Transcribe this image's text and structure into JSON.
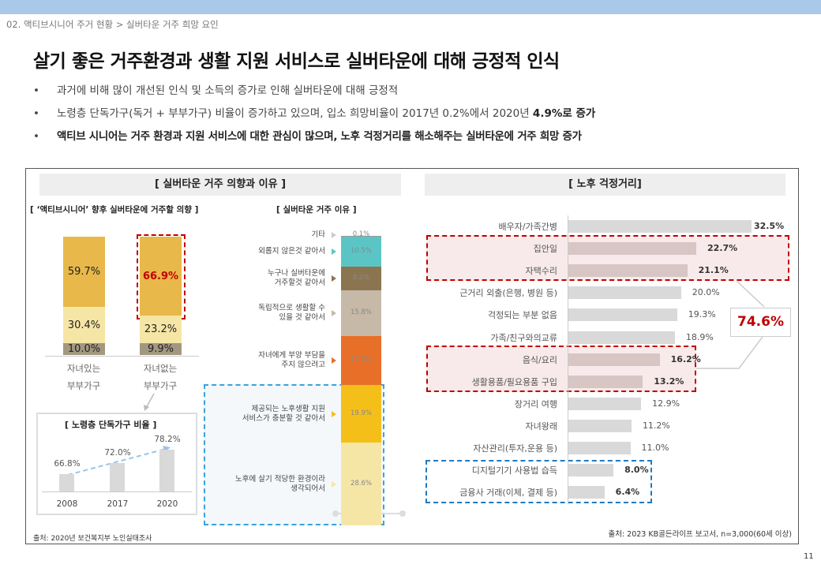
{
  "breadcrumb": "02. 액티브시니어 주거 현황 > 실버타운 거주 희망 요인",
  "title": "살기 좋은 거주환경과 생활 지원 서비스로 실버타운에 대해 긍정적 인식",
  "bullets": [
    {
      "text": "과거에 비해 많이 개선된 인식 및 소득의 증가로 인해 실버타운에 대해 긍정적"
    },
    {
      "text": "노령층 단독가구(독거 + 부부가구) 비율이 증가하고 있으며, 입소 희망비율이 2017년 0.2%에서 2020년 ",
      "bold": "4.9%로 증가"
    },
    {
      "text": "액티브 시니어는 거주 환경과 지원 서비스에 대한 관심이 많으며, 노후 걱정거리를 해소해주는 실버타운에 거주 희망 증가"
    }
  ],
  "left_header": "[ 실버타운 거주 의향과 이유 ]",
  "right_header": "[ 노후 걱정거리]",
  "left_source": "출처: 2020년 보건복지부 노인실태조사",
  "right_source": "출처: 2023 KB골든라이프 보고서, n=3,000(60세 이상)",
  "page_number": "11",
  "highlight_total": "74.6%",
  "colors": {
    "dark_yellow": "#e8b84a",
    "light_yellow": "#f6e6a6",
    "taupe": "#a39780",
    "red": "#c00000",
    "blue": "#1f7ac2"
  },
  "chart_data": [
    {
      "type": "bar",
      "stacked": true,
      "title": "[ ‘액티브시니어’ 향후 실버타운에 거주할 의향 ]",
      "categories": [
        "자녀있는 부부가구",
        "자녀없는 부부가구"
      ],
      "category_lines": [
        [
          "자녀있는",
          "부부가구"
        ],
        [
          "자녀없는",
          "부부가구"
        ]
      ],
      "series": [
        {
          "name": "bottom",
          "color": "#a39780",
          "values": [
            10.0,
            9.9
          ],
          "labels": [
            "10.0%",
            "9.9%"
          ]
        },
        {
          "name": "middle",
          "color": "#f6e6a6",
          "values": [
            30.4,
            23.2
          ],
          "labels": [
            "30.4%",
            "23.2%"
          ]
        },
        {
          "name": "top",
          "color": "#e8b84a",
          "values": [
            59.7,
            66.9
          ],
          "labels": [
            "59.7%",
            "66.9%"
          ]
        }
      ]
    },
    {
      "type": "bar",
      "title": "[ 노령층 단독가구 비율 ]",
      "categories": [
        "2008",
        "2017",
        "2020"
      ],
      "values": [
        66.8,
        72.0,
        78.2
      ],
      "labels": [
        "66.8%",
        "72.0%",
        "78.2%"
      ],
      "ylim": [
        60,
        80
      ]
    },
    {
      "type": "bar",
      "stacked": true,
      "title": "[ 실버타운 거주 이유 ]",
      "items": [
        {
          "label": "기타",
          "value": 0.1,
          "text": "0.1%",
          "color": "#999999"
        },
        {
          "label": "외롭지 않은것 같아서",
          "value": 10.5,
          "text": "10.5%",
          "color": "#5bc5c5"
        },
        {
          "label": "누구나 실버타운에 거주할것 같아서",
          "value": 8.2,
          "text": "8.2%",
          "color": "#8b7550"
        },
        {
          "label": "독립적으로 생활할 수 있을 것 같아서",
          "value": 15.8,
          "text": "15.8%",
          "color": "#c7b9a8"
        },
        {
          "label": "자녀에게 부양 부담을 주지 않으려고",
          "value": 17.0,
          "text": "17.0%",
          "color": "#e86f27"
        },
        {
          "label": "제공되는 노후생활 지원 서비스가  충분할 것 같아서",
          "value": 19.9,
          "text": "19.9%",
          "color": "#f5bf1a"
        },
        {
          "label": "노후에 살기 적당한 환경이라 생각되어서",
          "value": 28.6,
          "text": "28.6%",
          "color": "#f6e6a6"
        }
      ]
    },
    {
      "type": "bar",
      "orientation": "horizontal",
      "title": "[ 노후 걱정거리]",
      "items": [
        {
          "label": "배우자/가족간병",
          "value": 32.5,
          "text": "32.5%",
          "bold": true
        },
        {
          "label": "집안일",
          "value": 22.7,
          "text": "22.7%",
          "bold": true,
          "group": "red"
        },
        {
          "label": "자택수리",
          "value": 21.1,
          "text": "21.1%",
          "bold": true,
          "group": "red"
        },
        {
          "label": "근거리 외출(은행, 병원 등)",
          "value": 20.0,
          "text": "20.0%"
        },
        {
          "label": "걱정되는 부분 없음",
          "value": 19.3,
          "text": "19.3%"
        },
        {
          "label": "가족/친구와의교류",
          "value": 18.9,
          "text": "18.9%"
        },
        {
          "label": "음식/요리",
          "value": 16.2,
          "text": "16.2%",
          "bold": true,
          "group": "red"
        },
        {
          "label": "생활용품/필요용품  구입",
          "value": 13.2,
          "text": "13.2%",
          "bold": true,
          "group": "red"
        },
        {
          "label": "장거리 여행",
          "value": 12.9,
          "text": "12.9%"
        },
        {
          "label": "자녀왕래",
          "value": 11.2,
          "text": "11.2%"
        },
        {
          "label": "자산관리(투자,운용  등)",
          "value": 11.0,
          "text": "11.0%"
        },
        {
          "label": "디지털기기 사용법 습득",
          "value": 8.0,
          "text": "8.0%",
          "bold": true,
          "group": "blue"
        },
        {
          "label": "금융사 거래(이체, 결제 등)",
          "value": 6.4,
          "text": "6.4%",
          "bold": true,
          "group": "blue"
        }
      ]
    }
  ]
}
